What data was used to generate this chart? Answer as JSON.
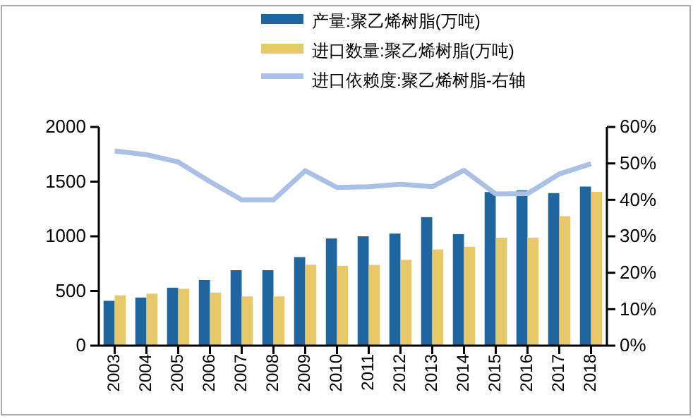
{
  "chart_data": {
    "type": "bar",
    "categories": [
      "2003",
      "2004",
      "2005",
      "2006",
      "2007",
      "2008",
      "2009",
      "2010",
      "2011",
      "2012",
      "2013",
      "2014",
      "2015",
      "2016",
      "2017",
      "2018"
    ],
    "series": [
      {
        "name": "产量:聚乙烯树脂(万吨)",
        "color": "#1f65a0",
        "values": [
          410,
          440,
          530,
          600,
          690,
          690,
          810,
          980,
          1000,
          1025,
          1175,
          1020,
          1405,
          1420,
          1395,
          1455
        ]
      },
      {
        "name": "进口数量:聚乙烯树脂(万吨)",
        "color": "#e8c96a",
        "values": [
          460,
          475,
          520,
          485,
          450,
          450,
          740,
          730,
          738,
          785,
          880,
          905,
          987,
          987,
          1184,
          1407
        ]
      },
      {
        "name": "进口依赖度:聚乙烯树脂-右轴",
        "type": "line",
        "axis": "y2",
        "color": "#aac0e6",
        "values": [
          53.4,
          52.4,
          50.4,
          45,
          40,
          40,
          48,
          43.4,
          43.6,
          44.3,
          43.6,
          48.1,
          41.6,
          41.7,
          47.1,
          49.9
        ]
      }
    ],
    "ylim": [
      0,
      2000
    ],
    "yticks": [
      0,
      500,
      1000,
      1500,
      2000
    ],
    "y2lim": [
      0,
      60
    ],
    "y2ticks": [
      {
        "value": 0,
        "label": "0%"
      },
      {
        "value": 10,
        "label": "10%"
      },
      {
        "value": 20,
        "label": "20%"
      },
      {
        "value": 30,
        "label": "30%"
      },
      {
        "value": 40,
        "label": "40%"
      },
      {
        "value": 50,
        "label": "50%"
      },
      {
        "value": 60,
        "label": "60%"
      }
    ],
    "grid": false,
    "legend": "top right",
    "marker": "none",
    "line_style": "solid"
  }
}
